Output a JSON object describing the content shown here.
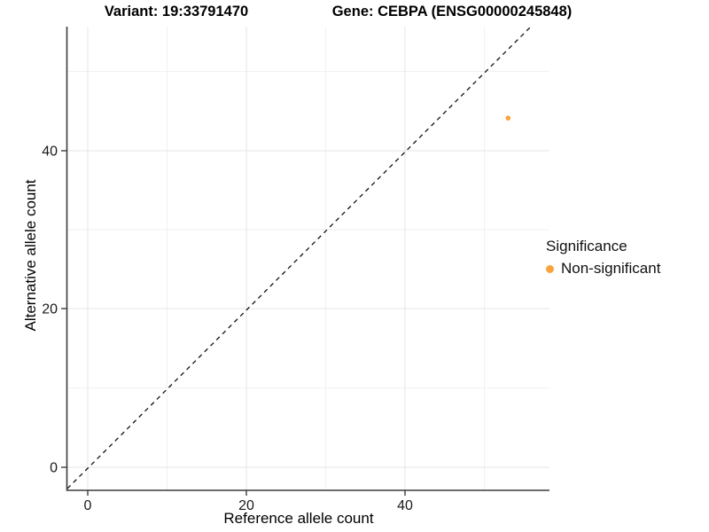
{
  "titles": {
    "variant": "Variant: 19:33791470",
    "gene": "Gene: CEBPA (ENSG00000245848)"
  },
  "chart_data": {
    "type": "scatter",
    "title": "Variant: 19:33791470   Gene: CEBPA (ENSG00000245848)",
    "xlabel": "Reference allele count",
    "ylabel": "Alternative allele count",
    "x_ticks": [
      "0",
      "20",
      "40"
    ],
    "y_ticks": [
      "0",
      "20",
      "40"
    ],
    "xlim": [
      -2.7,
      58.2
    ],
    "ylim": [
      -2.7,
      55.5
    ],
    "grid": true,
    "reference_line": {
      "kind": "diagonal y=x",
      "style": "dashed",
      "color": "#111111"
    },
    "series": [
      {
        "name": "Non-significant",
        "color": "#FBA33C",
        "points": [
          {
            "x": 53,
            "y": 44
          }
        ]
      }
    ],
    "legend": {
      "position": "right",
      "title": "Significance",
      "items": [
        {
          "label": "Non-significant",
          "color": "#FBA33C"
        }
      ]
    },
    "point_radius_px": 2.8
  },
  "colors": {
    "orange": "#FBA33C",
    "grid_major": "#e4e4e4",
    "grid_minor": "#f1f1f1",
    "axis": "#3c3c3c"
  }
}
